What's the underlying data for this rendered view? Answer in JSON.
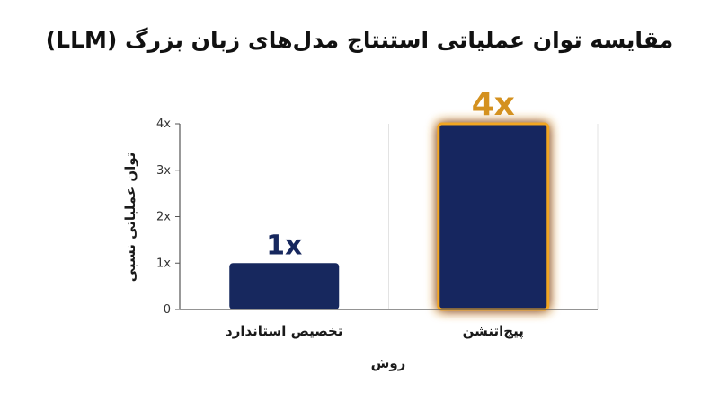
{
  "chart_data": {
    "type": "bar",
    "title": "مقایسه توان عملیاتی استنتاج مدل‌های زبان بزرگ (LLM)",
    "xlabel": "روش",
    "ylabel": "توان عملیاتی نسبی",
    "categories": [
      "تخصیص استاندارد",
      "پیج‌اتنشن"
    ],
    "values": [
      1,
      4
    ],
    "data_labels": [
      "1x",
      "4x"
    ],
    "ylim": [
      0,
      4
    ],
    "y_ticks": [
      {
        "value": 0,
        "label": "0"
      },
      {
        "value": 1,
        "label": "1x"
      },
      {
        "value": 2,
        "label": "2x"
      },
      {
        "value": 3,
        "label": "3x"
      },
      {
        "value": 4,
        "label": "4x"
      }
    ],
    "grid": "vertical-lines",
    "colors": {
      "bar": "#17285e",
      "highlight_glow": "#f2a624",
      "highlight_label": "#d4911f",
      "normal_label": "#17285e",
      "axis": "#555555",
      "grid": "#e3e3e3"
    },
    "highlight_index": 1
  }
}
